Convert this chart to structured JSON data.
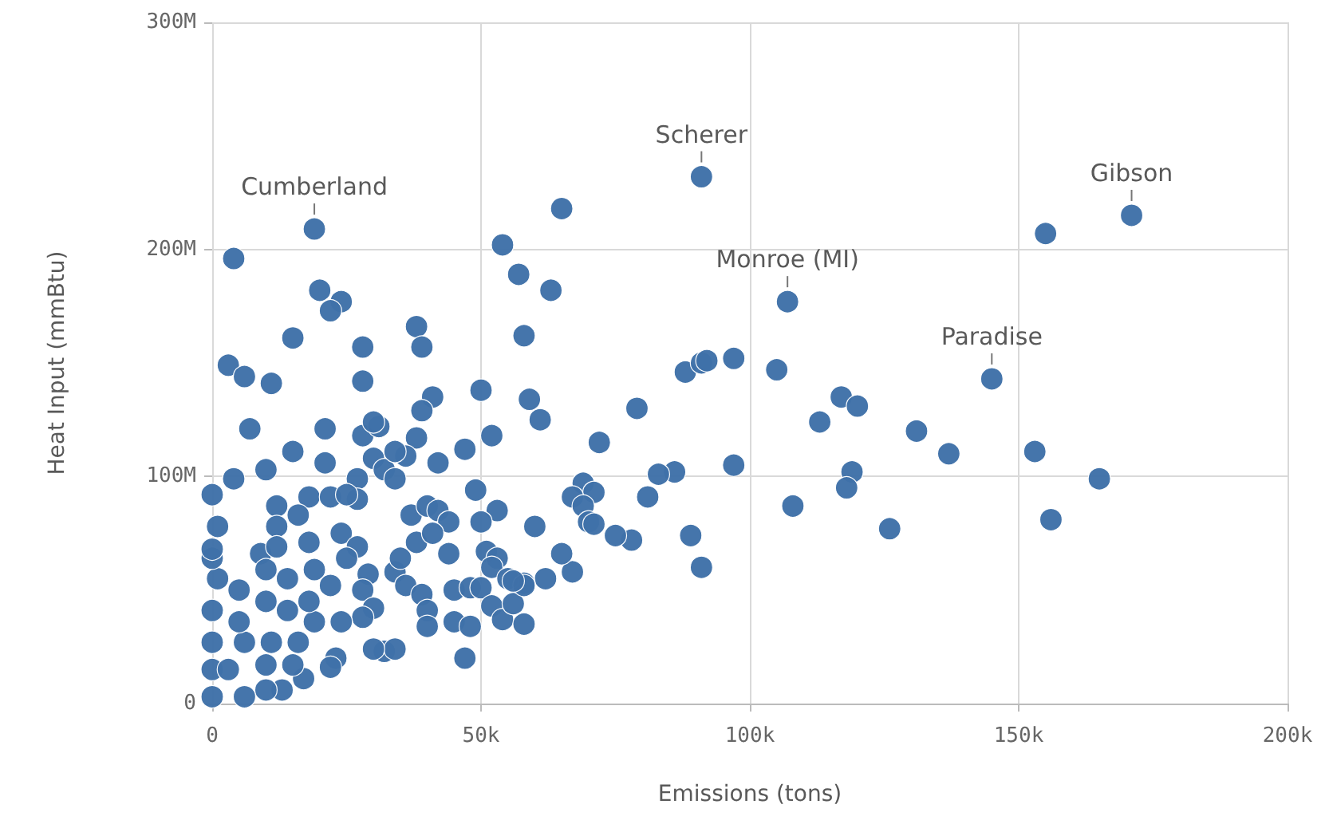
{
  "chart_data": {
    "type": "scatter",
    "xlabel": "Emissions (tons)",
    "ylabel": "Heat Input (mmBtu)",
    "xlim": [
      0,
      200000
    ],
    "ylim": [
      0,
      300000000
    ],
    "xticks": [
      0,
      {
        "value": 50000,
        "label": "50k"
      },
      {
        "value": 100000,
        "label": "100k"
      },
      {
        "value": 150000,
        "label": "150k"
      },
      {
        "value": 200000,
        "label": "200k"
      }
    ],
    "yticks": [
      0,
      {
        "value": 100000000,
        "label": "100M"
      },
      {
        "value": 200000000,
        "label": "200M"
      },
      {
        "value": 300000000,
        "label": "300M"
      }
    ],
    "grid": true,
    "marker": "circle",
    "annotations": [
      {
        "text": "Cumberland",
        "x": 19000,
        "y": 209000000
      },
      {
        "text": "Scherer",
        "x": 91000,
        "y": 232000000
      },
      {
        "text": "Monroe (MI)",
        "x": 107000,
        "y": 177000000
      },
      {
        "text": "Paradise",
        "x": 145000,
        "y": 143000000
      },
      {
        "text": "Gibson",
        "x": 171000,
        "y": 215000000
      }
    ],
    "series": [
      {
        "color": "#3f71a8",
        "x": [
          19000,
          91000,
          107000,
          145000,
          171000,
          65000,
          54000,
          57000,
          63000,
          58000,
          155000,
          50000,
          59000,
          61000,
          52000,
          79000,
          72000,
          88000,
          91000,
          92000,
          97000,
          105000,
          117000,
          120000,
          113000,
          131000,
          137000,
          153000,
          165000,
          156000,
          126000,
          119000,
          118000,
          108000,
          97000,
          91000,
          89000,
          86000,
          83000,
          81000,
          78000,
          75000,
          67000,
          65000,
          62000,
          60000,
          69000,
          71000,
          67000,
          69000,
          70000,
          71000,
          53000,
          50000,
          49000,
          51000,
          53000,
          52000,
          58000,
          55000,
          4000,
          20000,
          24000,
          22000,
          15000,
          28000,
          38000,
          39000,
          3000,
          6000,
          11000,
          28000,
          41000,
          39000,
          7000,
          21000,
          28000,
          31000,
          30000,
          38000,
          15000,
          21000,
          10000,
          4000,
          27000,
          30000,
          32000,
          34000,
          36000,
          34000,
          42000,
          47000,
          37000,
          40000,
          42000,
          44000,
          38000,
          41000,
          34000,
          35000,
          36000,
          39000,
          40000,
          40000,
          45000,
          48000,
          45000,
          48000,
          50000,
          44000,
          47000,
          52000,
          54000,
          56000,
          58000,
          58000,
          56000,
          12000,
          18000,
          22000,
          27000,
          25000,
          12000,
          16000,
          9000,
          12000,
          18000,
          24000,
          27000,
          29000,
          28000,
          30000,
          28000,
          32000,
          34000,
          30000,
          23000,
          17000,
          13000,
          10000,
          6000,
          0,
          22000,
          19000,
          14000,
          10000,
          5000,
          1000,
          0,
          1000,
          0,
          0,
          0,
          0,
          6000,
          11000,
          16000,
          5000,
          14000,
          22000,
          10000,
          19000,
          3000,
          10000,
          15000,
          24000,
          18000,
          25000,
          0
        ],
        "values": [
          209000000,
          232000000,
          177000000,
          143000000,
          215000000,
          218000000,
          202000000,
          189000000,
          182000000,
          162000000,
          207000000,
          138000000,
          134000000,
          125000000,
          118000000,
          130000000,
          115000000,
          146000000,
          150000000,
          151000000,
          152000000,
          147000000,
          135000000,
          131000000,
          124000000,
          120000000,
          110000000,
          111000000,
          99000000,
          81000000,
          77000000,
          102000000,
          95000000,
          87000000,
          105000000,
          60000000,
          74000000,
          102000000,
          101000000,
          91000000,
          72000000,
          74000000,
          58000000,
          66000000,
          55000000,
          78000000,
          97000000,
          93000000,
          91000000,
          87000000,
          80000000,
          79000000,
          85000000,
          80000000,
          94000000,
          67000000,
          64000000,
          60000000,
          53000000,
          55000000,
          196000000,
          182000000,
          177000000,
          173000000,
          161000000,
          157000000,
          166000000,
          157000000,
          149000000,
          144000000,
          141000000,
          142000000,
          135000000,
          129000000,
          121000000,
          121000000,
          118000000,
          122000000,
          124000000,
          117000000,
          111000000,
          106000000,
          103000000,
          99000000,
          99000000,
          108000000,
          103000000,
          99000000,
          109000000,
          111000000,
          106000000,
          112000000,
          83000000,
          87000000,
          85000000,
          80000000,
          71000000,
          75000000,
          58000000,
          64000000,
          52000000,
          48000000,
          41000000,
          34000000,
          36000000,
          34000000,
          50000000,
          51000000,
          51000000,
          66000000,
          20000000,
          43000000,
          37000000,
          44000000,
          52000000,
          35000000,
          54000000,
          87000000,
          91000000,
          91000000,
          90000000,
          92000000,
          78000000,
          83000000,
          66000000,
          69000000,
          71000000,
          75000000,
          69000000,
          57000000,
          50000000,
          42000000,
          38000000,
          23000000,
          24000000,
          24000000,
          20000000,
          11000000,
          6000000,
          6000000,
          3000000,
          3000000,
          16000000,
          36000000,
          41000000,
          45000000,
          50000000,
          55000000,
          64000000,
          78000000,
          92000000,
          41000000,
          27000000,
          15000000,
          27000000,
          27000000,
          27000000,
          36000000,
          55000000,
          52000000,
          59000000,
          59000000,
          15000000,
          17000000,
          17000000,
          36000000,
          45000000,
          64000000,
          68000000
        ]
      }
    ]
  }
}
